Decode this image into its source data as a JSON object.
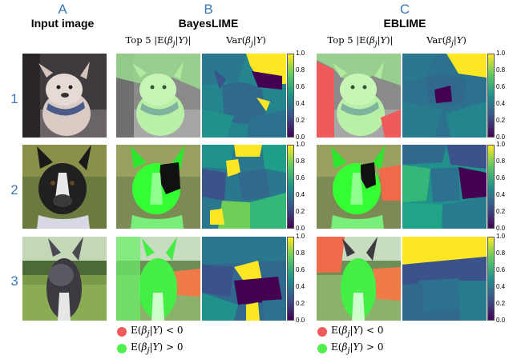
{
  "columns": {
    "a": {
      "letter": "A",
      "title": "Input image"
    },
    "b": {
      "letter": "B",
      "title": "BayesLIME",
      "sub_mean": "Top 5 |E(βj|Y)|",
      "sub_var": "Var(βj|Y)"
    },
    "c": {
      "letter": "C",
      "title": "EBLIME",
      "sub_mean": "Top 5 |E(βj|Y)|",
      "sub_var": "Var(βj|Y)"
    }
  },
  "rows": [
    "1",
    "2",
    "3"
  ],
  "colorbar_ticks": [
    "1.0",
    "0.8",
    "0.6",
    "0.4",
    "0.2",
    "0.0"
  ],
  "legend": {
    "negative": {
      "label": "E(βj|Y) < 0",
      "color": "#f05a5a"
    },
    "positive": {
      "label": "E(βj|Y) > 0",
      "color": "#4ef04e"
    }
  },
  "colors": {
    "accent": "#3a78b8",
    "viridis": [
      "#440154",
      "#3b528b",
      "#21918c",
      "#5ec962",
      "#fde725"
    ]
  }
}
